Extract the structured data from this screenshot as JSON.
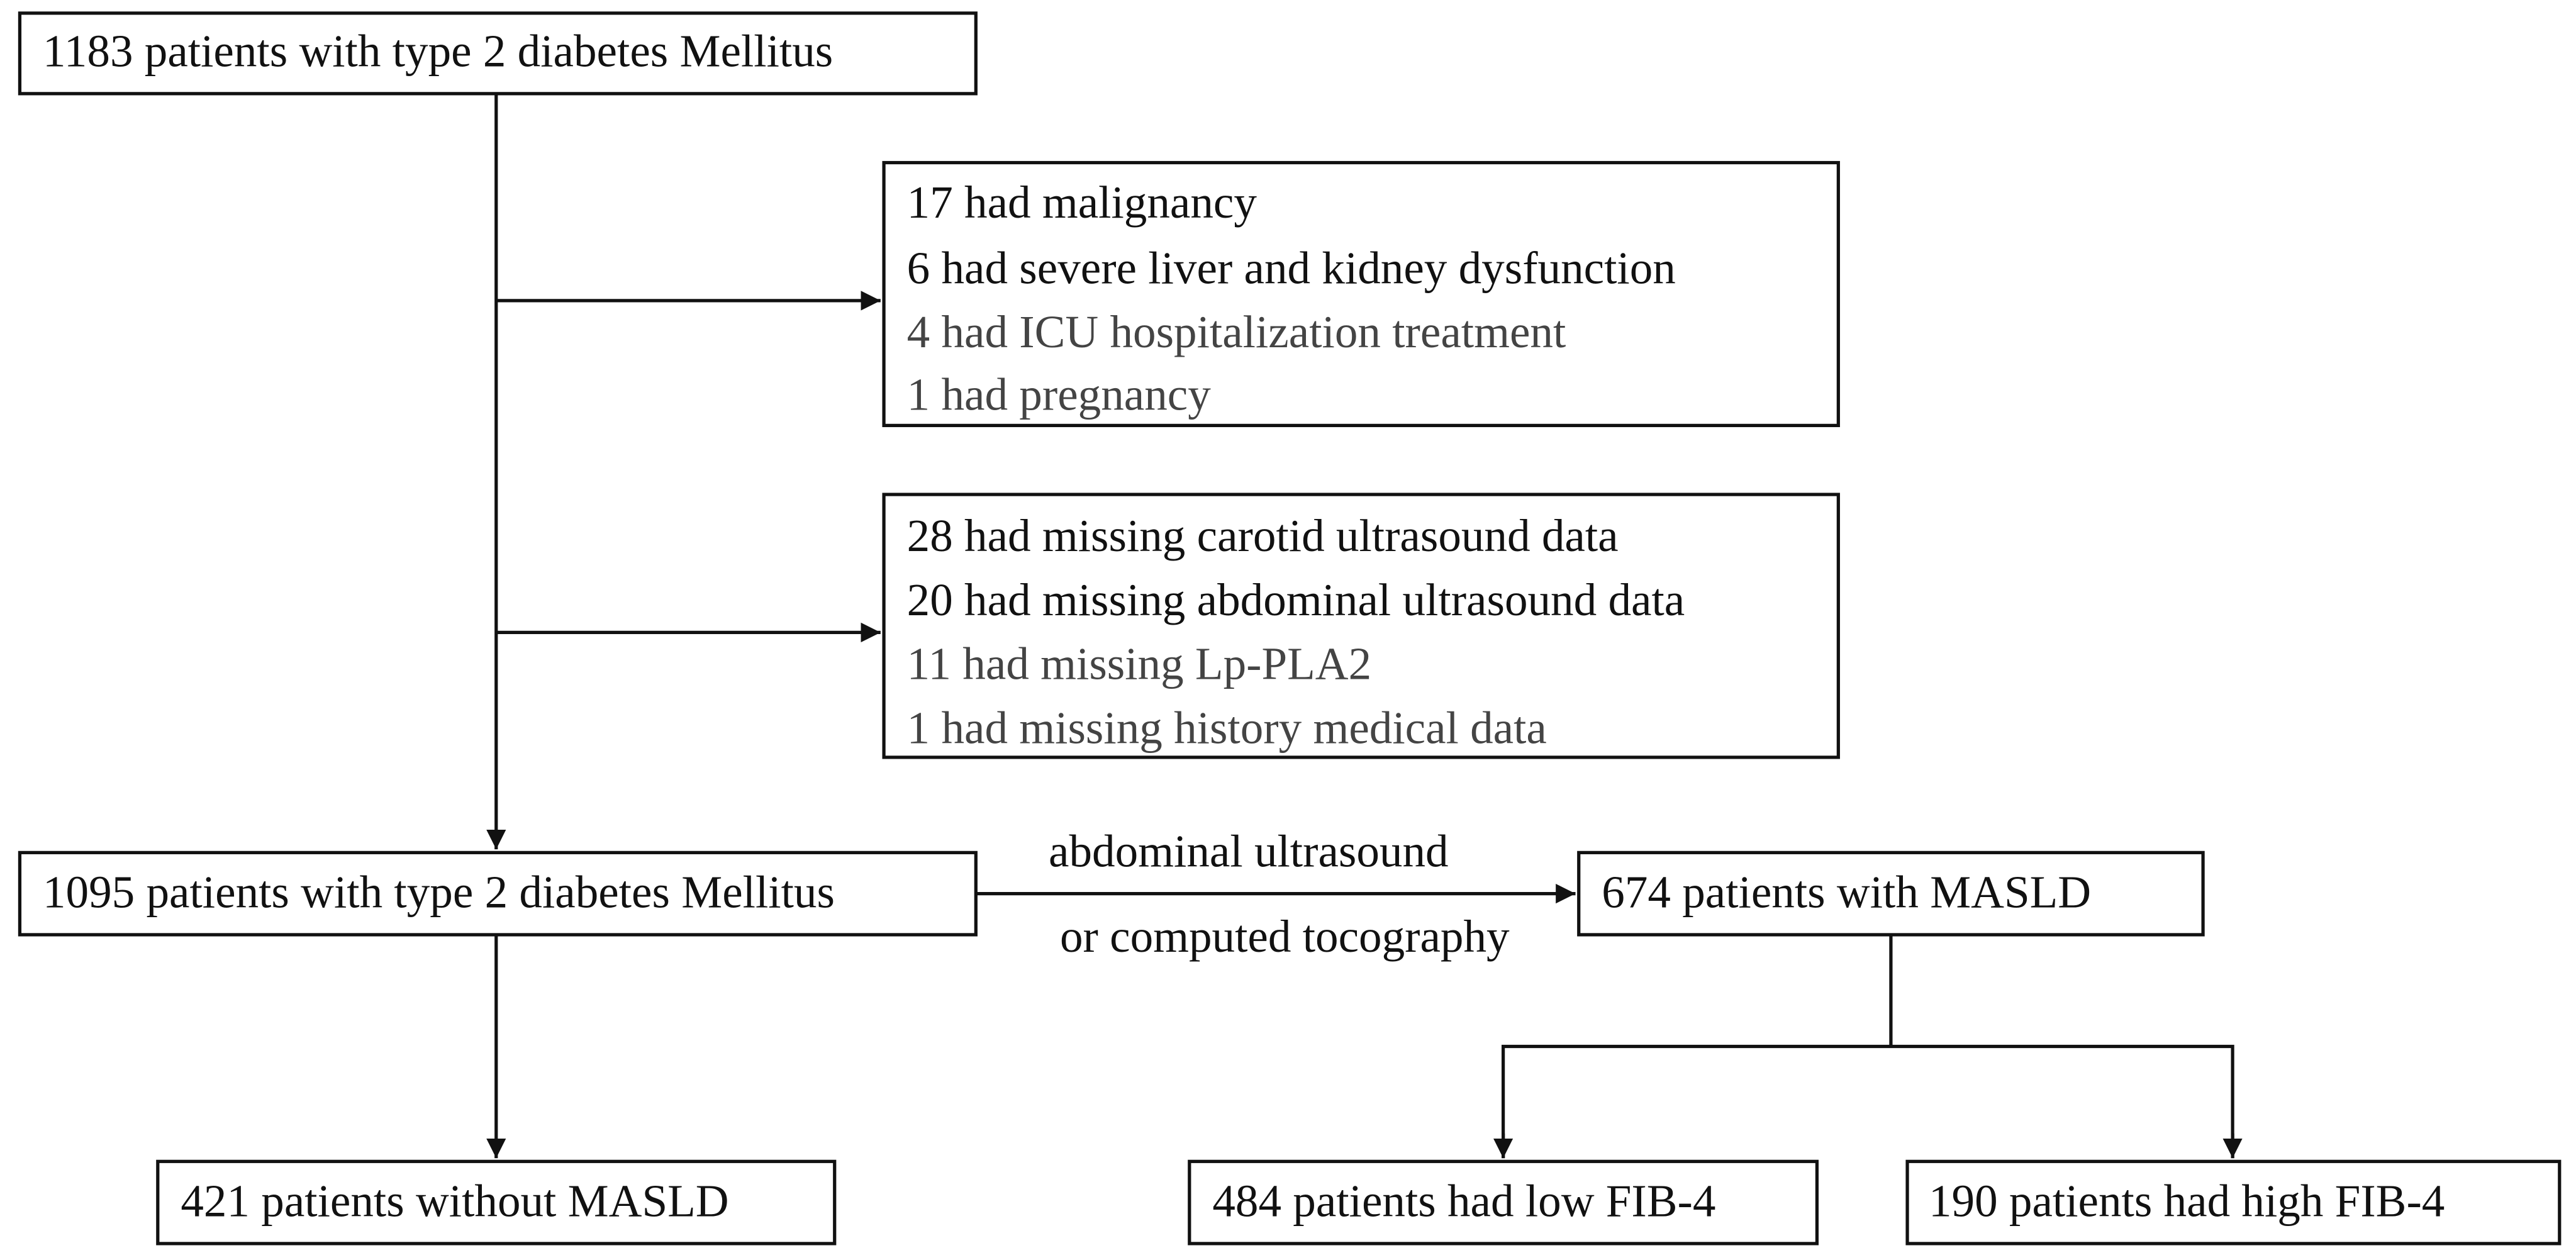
{
  "nodes": [
    {
      "label": "1183 patients with type 2 diabetes Mellitus"
    },
    {
      "label": "1095 patients with type 2 diabetes Mellitus"
    },
    {
      "label": "674 patients with MASLD"
    },
    {
      "label": "421 patients without MASLD"
    },
    {
      "label": "484 patients had low FIB-4"
    },
    {
      "label": "190 patients had high FIB-4"
    }
  ],
  "exclusions": [
    {
      "lines": [
        "17 had malignancy",
        "6 had severe liver and kidney dysfunction",
        "4 had ICU hospitalization treatment",
        "1 had pregnancy"
      ]
    },
    {
      "lines": [
        "28 had missing carotid ultrasound data",
        "20 had missing abdominal ultrasound data",
        "11 had missing Lp-PLA2",
        "1 had missing history medical data"
      ]
    }
  ],
  "edge_labels": [
    "abdominal ultrasound",
    "or computed tocography"
  ]
}
